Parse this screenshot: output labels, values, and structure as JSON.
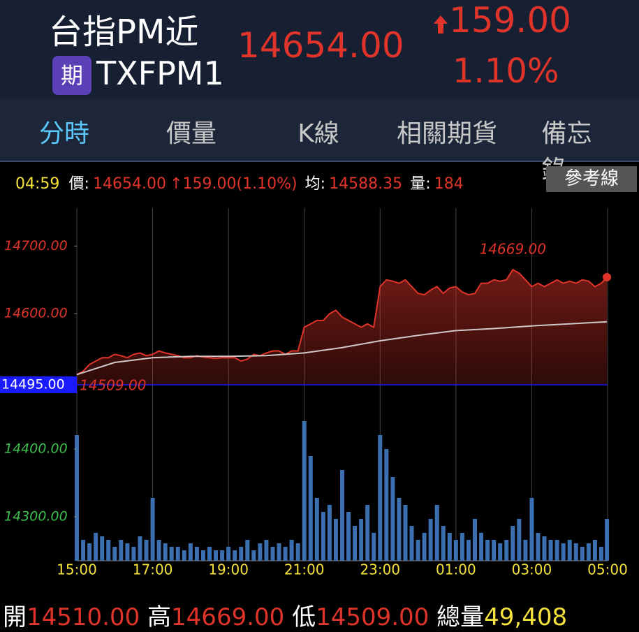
{
  "header": {
    "title": "台指PM近",
    "badge": "期",
    "code": "TXFPM1",
    "price": "14654.00",
    "change": "159.00",
    "change_pct": "1.10%"
  },
  "tabs": [
    "分時",
    "價量",
    "K線",
    "相關期貨",
    "備忘錄"
  ],
  "info": {
    "time": "04:59",
    "price_label": "價:",
    "price": "14654.00",
    "change": "159.00(1.10%)",
    "avg_label": "均:",
    "avg": "14588.35",
    "vol_label": "量:",
    "vol": "184",
    "button": "參考線"
  },
  "chart_data": {
    "type": "line",
    "up_color": "#e0342a",
    "down_color": "#3fbf4f",
    "grid": "vertical",
    "xlim": [
      "15:00",
      "05:00"
    ],
    "xticks": [
      "15:00",
      "17:00",
      "19:00",
      "21:00",
      "23:00",
      "01:00",
      "03:00",
      "05:00"
    ],
    "ylim": [
      14235,
      14756
    ],
    "yticks": [
      {
        "value": 14300,
        "label": "14300.00"
      },
      {
        "value": 14400,
        "label": "14400.00"
      },
      {
        "value": 14600,
        "label": "14600.00"
      },
      {
        "value": 14700,
        "label": "14700.00"
      }
    ],
    "reference": {
      "value": 14495,
      "label": "14495.00",
      "color": "#1a1aff"
    },
    "high_label": "14669.00",
    "low_label": "14509.00",
    "price": {
      "color": "#e0342a",
      "x": [
        "15:00",
        "15:10",
        "15:20",
        "15:30",
        "15:40",
        "15:50",
        "16:00",
        "16:10",
        "16:20",
        "16:30",
        "16:40",
        "16:50",
        "17:00",
        "17:10",
        "17:20",
        "17:30",
        "17:40",
        "17:50",
        "18:00",
        "18:10",
        "18:20",
        "18:30",
        "18:40",
        "18:50",
        "19:00",
        "19:10",
        "19:20",
        "19:30",
        "19:40",
        "19:50",
        "20:00",
        "20:10",
        "20:20",
        "20:30",
        "20:40",
        "20:50",
        "21:00",
        "21:10",
        "21:20",
        "21:30",
        "21:40",
        "21:50",
        "22:00",
        "22:10",
        "22:20",
        "22:30",
        "22:40",
        "22:50",
        "23:00",
        "23:10",
        "23:20",
        "23:30",
        "23:40",
        "23:50",
        "00:00",
        "00:10",
        "00:20",
        "00:30",
        "00:40",
        "00:50",
        "01:00",
        "01:10",
        "01:20",
        "01:30",
        "01:40",
        "01:50",
        "02:00",
        "02:10",
        "02:20",
        "02:30",
        "02:40",
        "02:50",
        "03:00",
        "03:10",
        "03:20",
        "03:30",
        "03:40",
        "03:50",
        "04:00",
        "04:10",
        "04:20",
        "04:30",
        "04:40",
        "04:50",
        "04:59"
      ],
      "values": [
        14510,
        14515,
        14525,
        14530,
        14535,
        14535,
        14540,
        14538,
        14535,
        14540,
        14542,
        14538,
        14540,
        14545,
        14542,
        14540,
        14538,
        14535,
        14535,
        14538,
        14536,
        14535,
        14534,
        14535,
        14535,
        14535,
        14530,
        14533,
        14540,
        14538,
        14542,
        14545,
        14545,
        14540,
        14545,
        14545,
        14580,
        14585,
        14590,
        14590,
        14600,
        14605,
        14595,
        14590,
        14585,
        14580,
        14585,
        14580,
        14640,
        14650,
        14648,
        14645,
        14650,
        14640,
        14630,
        14628,
        14635,
        14640,
        14630,
        14638,
        14640,
        14632,
        14628,
        14630,
        14645,
        14645,
        14650,
        14648,
        14650,
        14665,
        14660,
        14650,
        14640,
        14645,
        14640,
        14645,
        14650,
        14645,
        14648,
        14645,
        14650,
        14648,
        14640,
        14645,
        14654
      ]
    },
    "average": {
      "color": "#cfc8c8",
      "x": [
        "15:00",
        "16:00",
        "17:00",
        "18:00",
        "19:00",
        "20:00",
        "21:00",
        "22:00",
        "23:00",
        "00:00",
        "01:00",
        "02:00",
        "03:00",
        "04:00",
        "04:59"
      ],
      "values": [
        14510,
        14528,
        14535,
        14537,
        14537,
        14538,
        14542,
        14550,
        14560,
        14568,
        14575,
        14578,
        14582,
        14585,
        14588
      ]
    },
    "volume": {
      "color": "#3b6fb0",
      "x": [
        "15:00",
        "15:10",
        "15:20",
        "15:30",
        "15:40",
        "15:50",
        "16:00",
        "16:10",
        "16:20",
        "16:30",
        "16:40",
        "16:50",
        "17:00",
        "17:10",
        "17:20",
        "17:30",
        "17:40",
        "17:50",
        "18:00",
        "18:10",
        "18:20",
        "18:30",
        "18:40",
        "18:50",
        "19:00",
        "19:10",
        "19:20",
        "19:30",
        "19:40",
        "19:50",
        "20:00",
        "20:10",
        "20:20",
        "20:30",
        "20:40",
        "20:50",
        "21:00",
        "21:10",
        "21:20",
        "21:30",
        "21:40",
        "21:50",
        "22:00",
        "22:10",
        "22:20",
        "22:30",
        "22:40",
        "22:50",
        "23:00",
        "23:10",
        "23:20",
        "23:30",
        "23:40",
        "23:50",
        "00:00",
        "00:10",
        "00:20",
        "00:30",
        "00:40",
        "00:50",
        "01:00",
        "01:10",
        "01:20",
        "01:30",
        "01:40",
        "01:50",
        "02:00",
        "02:10",
        "02:20",
        "02:30",
        "02:40",
        "02:50",
        "03:00",
        "03:10",
        "03:20",
        "03:30",
        "03:40",
        "03:50",
        "04:00",
        "04:10",
        "04:20",
        "04:30",
        "04:40",
        "04:50",
        "04:59"
      ],
      "values": [
        1800,
        300,
        250,
        400,
        350,
        300,
        200,
        300,
        250,
        200,
        350,
        300,
        900,
        300,
        250,
        200,
        200,
        150,
        250,
        200,
        150,
        200,
        150,
        150,
        200,
        150,
        200,
        300,
        150,
        250,
        300,
        200,
        250,
        200,
        300,
        250,
        2000,
        1500,
        900,
        700,
        800,
        600,
        1300,
        700,
        500,
        600,
        800,
        400,
        1800,
        1600,
        1200,
        900,
        800,
        500,
        300,
        400,
        600,
        800,
        500,
        400,
        300,
        400,
        300,
        600,
        400,
        300,
        300,
        250,
        300,
        500,
        600,
        300,
        900,
        400,
        350,
        300,
        300,
        250,
        300,
        250,
        200,
        250,
        300,
        200,
        600
      ]
    }
  },
  "footer": {
    "open_label": "開",
    "open": "14510.00",
    "high_label": "高",
    "high": "14669.00",
    "low_label": "低",
    "low": "14509.00",
    "total_label": "總量",
    "total": "49,408"
  }
}
